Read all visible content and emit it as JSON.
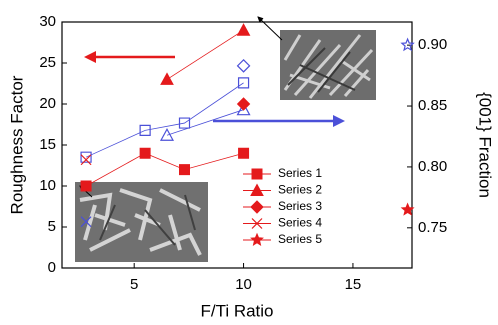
{
  "chart_data": {
    "type": "scatter-dual-axis",
    "xlabel": "F/Ti Ratio",
    "ylabel": "Roughness Factor",
    "y2label": "{001} Fraction",
    "xlim": [
      1.7,
      17.7
    ],
    "xticks": [
      5,
      10,
      15
    ],
    "ylim": [
      0,
      30
    ],
    "yticks": [
      0,
      5,
      10,
      15,
      20,
      25,
      30
    ],
    "y2lim": [
      0.717,
      0.919
    ],
    "y2ticks": [
      {
        "value": 0.75,
        "label": "0.75"
      },
      {
        "value": 0.8,
        "label": "0.80"
      },
      0.85,
      {
        "value": 0.9,
        "label": "0.90"
      }
    ],
    "color": "#e41a1c",
    "y2_color": "#4b50d8",
    "series": [
      {
        "name": "Series 1",
        "marker": "square",
        "connected": true,
        "x": [
          2.8,
          5.5,
          7.3,
          10
        ],
        "values": [
          10,
          14,
          12,
          14
        ],
        "y2_values": [
          0.808,
          0.83,
          0.836,
          0.869
        ]
      },
      {
        "name": "Series 2",
        "marker": "triangle",
        "connected": true,
        "x": [
          6.5,
          10
        ],
        "values": [
          23,
          29
        ],
        "y2_values": [
          0.826,
          0.847
        ]
      },
      {
        "name": "Series 3",
        "marker": "diamond",
        "connected": false,
        "x": [
          10
        ],
        "values": [
          20
        ],
        "y2_values": [
          0.883
        ]
      },
      {
        "name": "Series 4",
        "marker": "cross",
        "connected": false,
        "x": [
          2.8
        ],
        "values": [
          13.2
        ],
        "y2_values": [
          0.755
        ]
      },
      {
        "name": "Series 5",
        "marker": "star",
        "connected": false,
        "x": [
          17.5
        ],
        "values": [
          7.1
        ],
        "y2_values": [
          0.9
        ]
      }
    ]
  }
}
